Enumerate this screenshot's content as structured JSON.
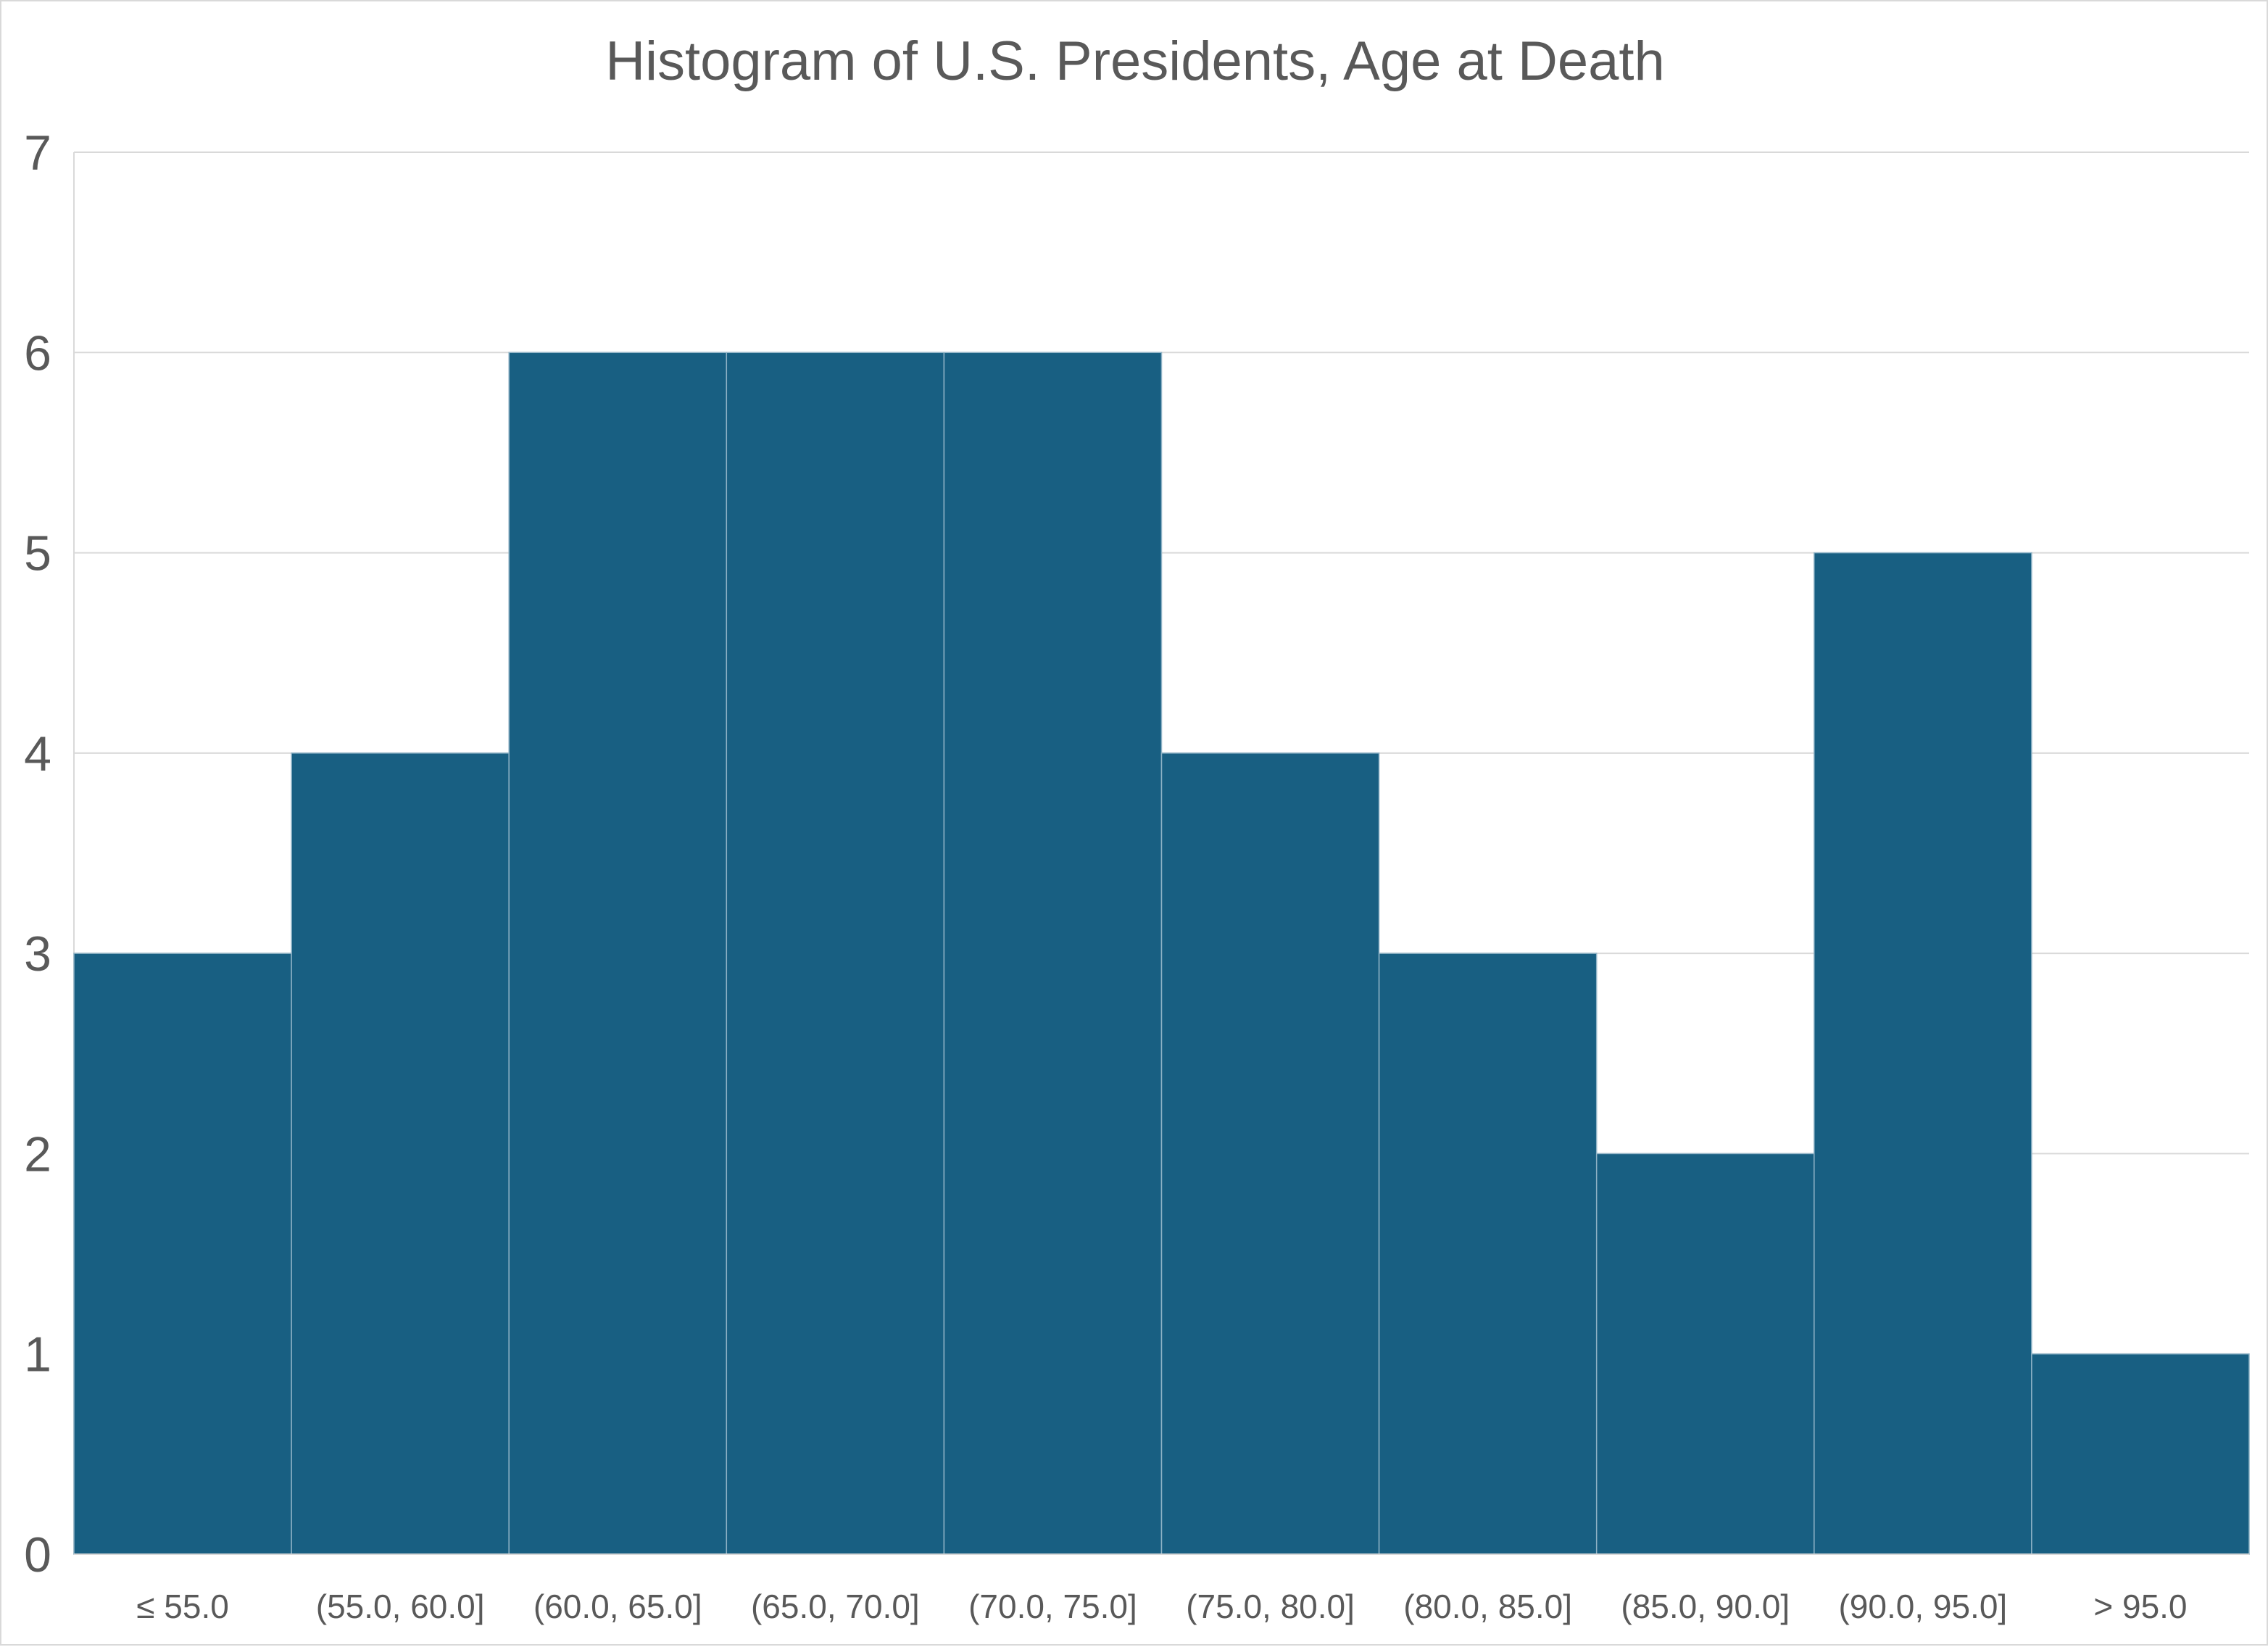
{
  "chart_data": {
    "type": "bar",
    "title": "Histogram of U.S. Presidents, Age at Death",
    "xlabel": "",
    "ylabel": "",
    "categories": [
      "≤ 55.0",
      "(55.0, 60.0]",
      "(60.0, 65.0]",
      "(65.0, 70.0]",
      "(70.0, 75.0]",
      "(75.0, 80.0]",
      "(80.0, 85.0]",
      "(85.0, 90.0]",
      "(90.0, 95.0]",
      "> 95.0"
    ],
    "values": [
      3,
      4,
      6,
      6,
      6,
      4,
      3,
      2,
      5,
      1
    ],
    "ylim": [
      0,
      7
    ],
    "yticks": [
      "0",
      "1",
      "2",
      "3",
      "4",
      "5",
      "6",
      "7"
    ],
    "grid": true,
    "legend": "none",
    "bar_color": "#185f82",
    "bar_edge_color": "#8fb3c6"
  }
}
